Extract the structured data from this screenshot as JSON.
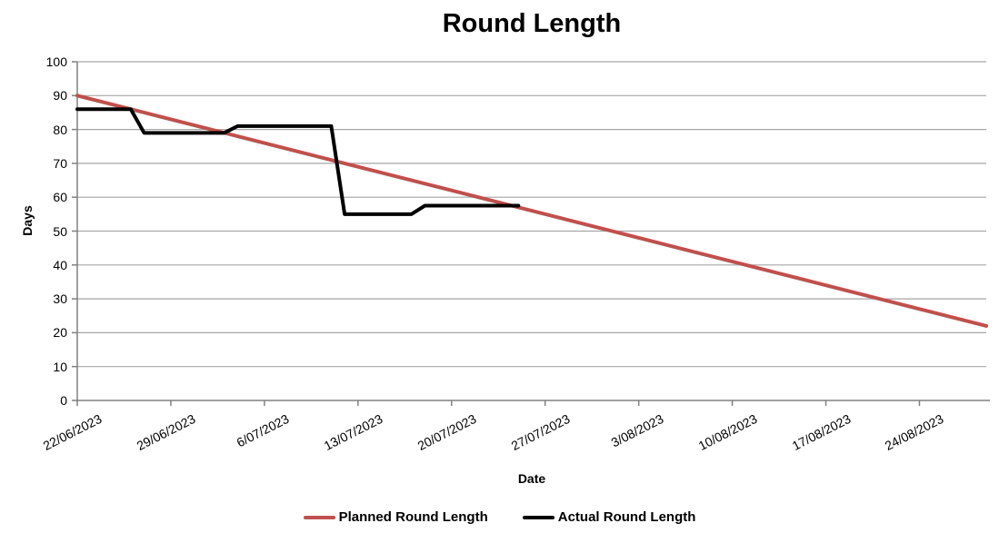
{
  "chart_data": {
    "type": "line",
    "title": "Round Length",
    "xlabel": "Date",
    "ylabel": "Days",
    "ylim": [
      0,
      100
    ],
    "y_tick_step": 10,
    "y_ticks": [
      0,
      10,
      20,
      30,
      40,
      50,
      60,
      70,
      80,
      90,
      100
    ],
    "x_tick_labels": [
      "22/06/2023",
      "29/06/2023",
      "6/07/2023",
      "13/07/2023",
      "20/07/2023",
      "27/07/2023",
      "3/08/2023",
      "10/08/2023",
      "17/08/2023",
      "24/08/2023"
    ],
    "x_axis_span_days": 68,
    "grid": "horizontal-only",
    "legend_position": "bottom-center",
    "colors": {
      "grid": "#A6A6A6",
      "axis": "#808080",
      "text": "#000000",
      "background": "#FFFFFF"
    },
    "series": [
      {
        "name": "Planned Round Length",
        "color": "#C0504D",
        "width": 4,
        "points": [
          [
            "22/06/2023",
            90
          ],
          [
            "29/06/2023",
            83
          ],
          [
            "6/07/2023",
            76
          ],
          [
            "13/07/2023",
            69
          ],
          [
            "20/07/2023",
            62
          ],
          [
            "27/07/2023",
            55
          ],
          [
            "3/08/2023",
            48
          ],
          [
            "10/08/2023",
            41
          ],
          [
            "17/08/2023",
            34
          ],
          [
            "24/08/2023",
            27
          ],
          [
            "29/08/2023",
            22
          ]
        ]
      },
      {
        "name": "Actual Round Length",
        "color": "#000000",
        "width": 4,
        "points": [
          [
            "22/06/2023",
            86
          ],
          [
            "26/06/2023",
            86
          ],
          [
            "27/06/2023",
            79
          ],
          [
            "3/07/2023",
            79
          ],
          [
            "4/07/2023",
            81
          ],
          [
            "11/07/2023",
            81
          ],
          [
            "12/07/2023",
            55
          ],
          [
            "17/07/2023",
            55
          ],
          [
            "18/07/2023",
            57.5
          ],
          [
            "25/07/2023",
            57.5
          ]
        ]
      }
    ]
  }
}
